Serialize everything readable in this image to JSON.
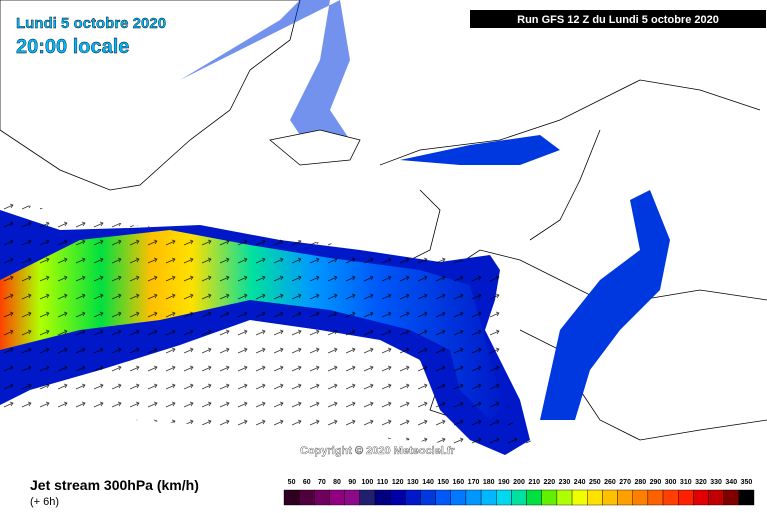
{
  "header": {
    "date": "Lundi 5 octobre 2020",
    "time": "20:00 locale",
    "run": "Run GFS 12 Z du Lundi 5 octobre 2020"
  },
  "copyright": "Copyright © 2020 Meteociel.fr",
  "footer": {
    "title": "Jet stream 300hPa (km/h)",
    "lead": "(+ 6h)"
  },
  "legend": [
    {
      "value": 50,
      "color": "#300020"
    },
    {
      "value": 60,
      "color": "#50003c"
    },
    {
      "value": 70,
      "color": "#700060"
    },
    {
      "value": 80,
      "color": "#900080"
    },
    {
      "value": 90,
      "color": "#8a0a8a"
    },
    {
      "value": 100,
      "color": "#20206e"
    },
    {
      "value": 110,
      "color": "#000080"
    },
    {
      "value": 120,
      "color": "#0000a8"
    },
    {
      "value": 130,
      "color": "#0018c8"
    },
    {
      "value": 140,
      "color": "#0038e0"
    },
    {
      "value": 150,
      "color": "#0058f8"
    },
    {
      "value": 160,
      "color": "#0078ff"
    },
    {
      "value": 170,
      "color": "#0098ff"
    },
    {
      "value": 180,
      "color": "#00b8ff"
    },
    {
      "value": 190,
      "color": "#00d8f0"
    },
    {
      "value": 200,
      "color": "#00e0a0"
    },
    {
      "value": 210,
      "color": "#00e040"
    },
    {
      "value": 220,
      "color": "#60f000"
    },
    {
      "value": 230,
      "color": "#b0ff00"
    },
    {
      "value": 240,
      "color": "#f0ff00"
    },
    {
      "value": 250,
      "color": "#ffe000"
    },
    {
      "value": 260,
      "color": "#ffc000"
    },
    {
      "value": 270,
      "color": "#ffa000"
    },
    {
      "value": 280,
      "color": "#ff8000"
    },
    {
      "value": 290,
      "color": "#ff6000"
    },
    {
      "value": 300,
      "color": "#ff4000"
    },
    {
      "value": 310,
      "color": "#ff2000"
    },
    {
      "value": 320,
      "color": "#e00000"
    },
    {
      "value": 330,
      "color": "#c00000"
    },
    {
      "value": 340,
      "color": "#800000"
    },
    {
      "value": 350,
      "color": "#000000"
    }
  ]
}
